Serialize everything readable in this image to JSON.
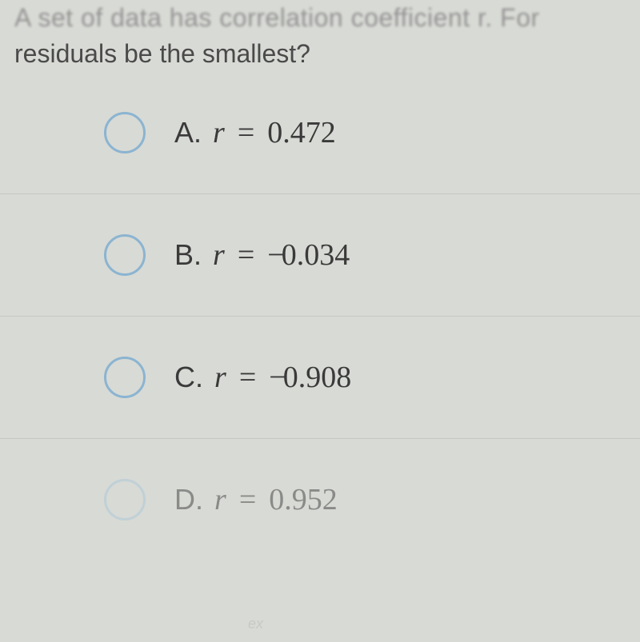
{
  "question": {
    "line1": "A set of data has correlation coefficient r. For",
    "line2": "residuals be the smallest?"
  },
  "options": [
    {
      "letter": "A.",
      "variable": "r",
      "equals": "=",
      "value": "0.472",
      "negative": false,
      "faded": false
    },
    {
      "letter": "B.",
      "variable": "r",
      "equals": "=",
      "value": "0.034",
      "negative": true,
      "faded": false
    },
    {
      "letter": "C.",
      "variable": "r",
      "equals": "=",
      "value": "0.908",
      "negative": true,
      "faded": false
    },
    {
      "letter": "D.",
      "variable": "r",
      "equals": "=",
      "value": "0.952",
      "negative": false,
      "faded": true
    }
  ],
  "styles": {
    "background_color": "#d8dad5",
    "text_color": "#3a3a3a",
    "radio_border_color": "#8bb4d1",
    "divider_color": "#c5c7c2",
    "question_fontsize": 32,
    "option_fontsize": 36,
    "radio_size": 52
  },
  "watermark": "ex"
}
